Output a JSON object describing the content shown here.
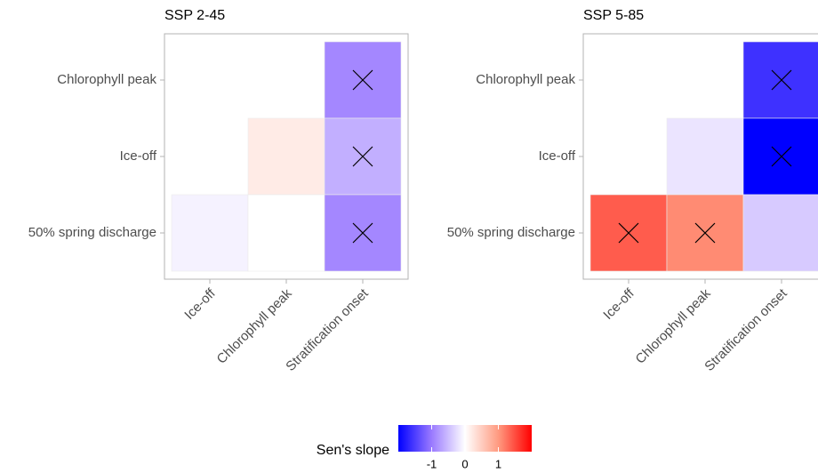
{
  "chart_data": [
    {
      "type": "heatmap",
      "title": "SSP 2-45",
      "x_categories": [
        "Ice-off",
        "Chlorophyll peak",
        "Stratification onset"
      ],
      "y_categories": [
        "Chlorophyll peak",
        "Ice-off",
        "50% spring discharge"
      ],
      "values": [
        [
          null,
          null,
          -0.9
        ],
        [
          null,
          0.2,
          -0.6
        ],
        [
          -0.1,
          0,
          -0.9
        ]
      ],
      "significant": [
        [
          false,
          false,
          true
        ],
        [
          false,
          false,
          true
        ],
        [
          false,
          false,
          true
        ]
      ]
    },
    {
      "type": "heatmap",
      "title": "SSP 5-85",
      "x_categories": [
        "Ice-off",
        "Chlorophyll peak",
        "Stratification onset"
      ],
      "y_categories": [
        "Chlorophyll peak",
        "Ice-off",
        "50% spring discharge"
      ],
      "values": [
        [
          null,
          null,
          -1.6
        ],
        [
          null,
          -0.2,
          -2.0
        ],
        [
          1.4,
          1.1,
          -0.4
        ]
      ],
      "significant": [
        [
          false,
          false,
          true
        ],
        [
          false,
          false,
          true
        ],
        [
          true,
          true,
          false
        ]
      ]
    }
  ],
  "color_scale": {
    "title": "Sen's slope",
    "lim": [
      -2,
      2
    ],
    "ticks": [
      -1,
      0,
      1
    ],
    "colors": [
      "#0000ff",
      "#9a7aff",
      "#ffffff",
      "#ff9a80",
      "#ff0000"
    ]
  }
}
